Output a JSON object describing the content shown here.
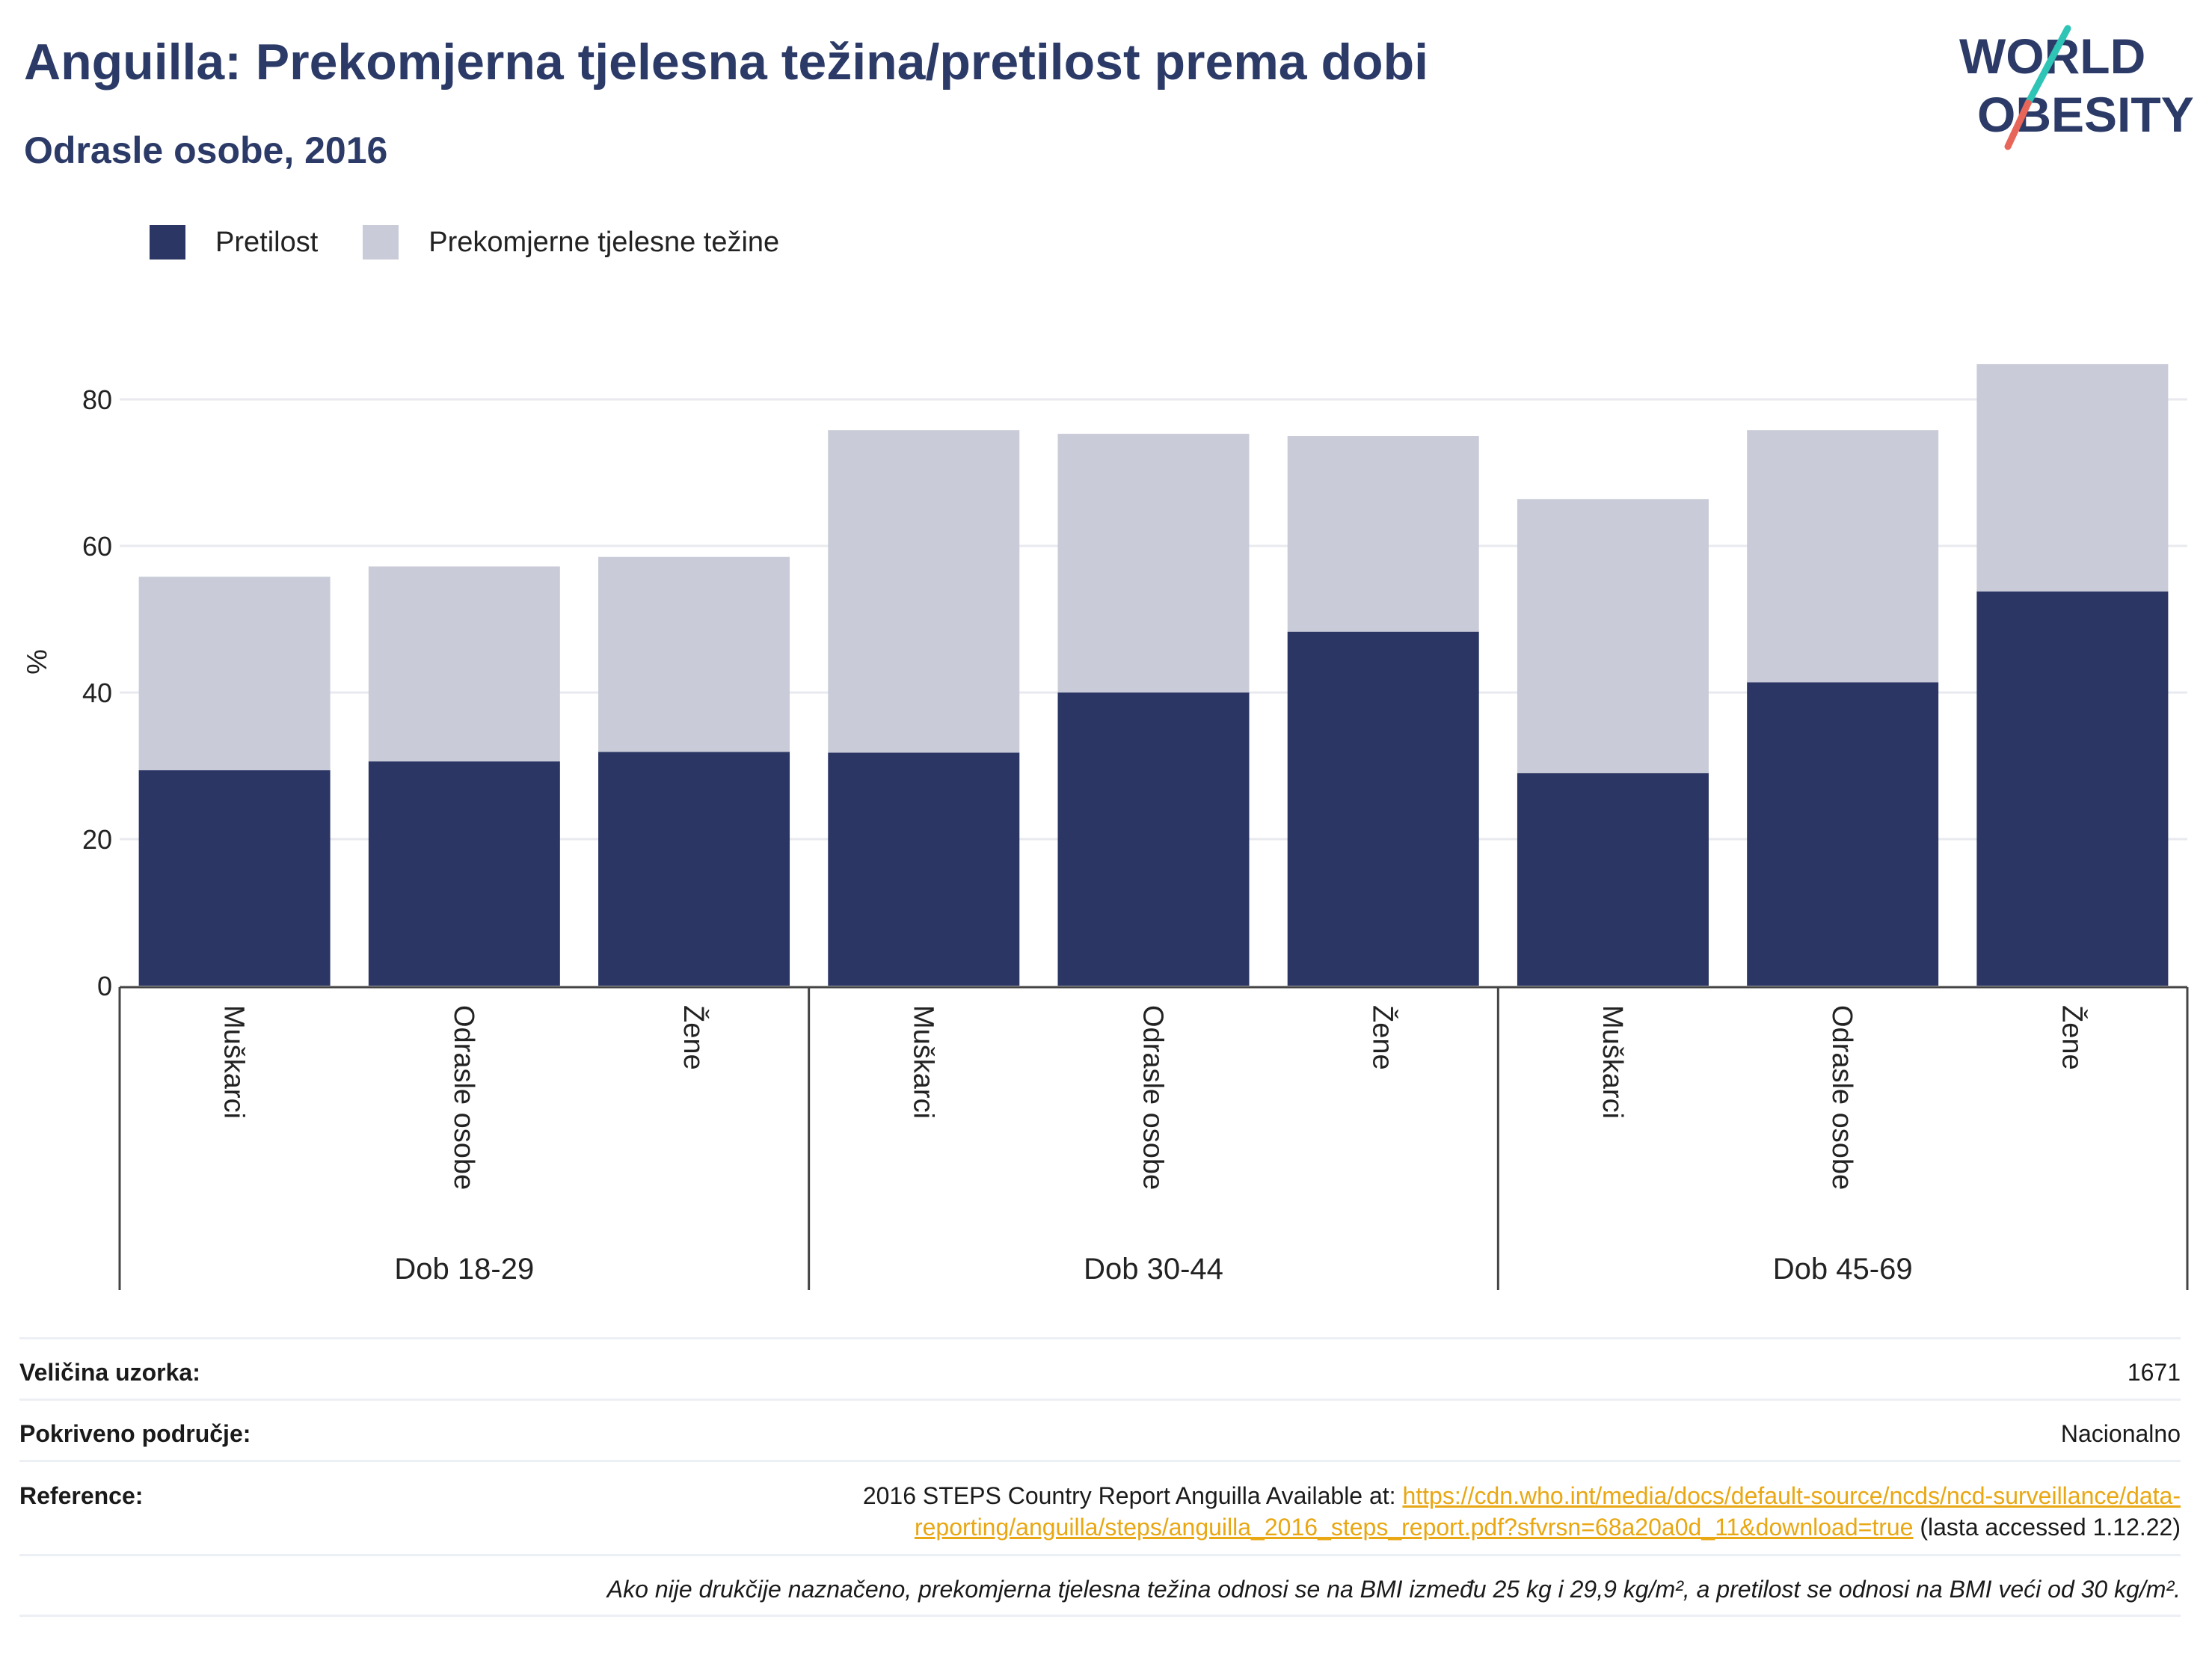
{
  "header": {
    "title": "Anguilla: Prekomjerna tjelesna težina/pretilost prema dobi",
    "subtitle": "Odrasle osobe, 2016"
  },
  "logo": {
    "line1": "WORLD",
    "line2": "OBESITY",
    "icon": "world-obesity-logo"
  },
  "legend": {
    "obesity": "Pretilost",
    "overweight": "Prekomjerne tjelesne težine"
  },
  "colors": {
    "obesity": "#2b3664",
    "overweight": "#c9ccd8",
    "accent_teal": "#2ec4b6",
    "accent_red": "#e8655a",
    "link": "#e8a713"
  },
  "chart_data": {
    "type": "bar",
    "stacked": true,
    "ylabel": "%",
    "ylim": [
      0,
      85
    ],
    "yticks": [
      0,
      20,
      40,
      60,
      80
    ],
    "grid": true,
    "legend_position": "top-left",
    "groups": [
      "Dob 18-29",
      "Dob 30-44",
      "Dob 45-69"
    ],
    "categories": [
      "Muškarci",
      "Odrasle osobe",
      "Žene",
      "Muškarci",
      "Odrasle osobe",
      "Žene",
      "Muškarci",
      "Odrasle osobe",
      "Žene"
    ],
    "series": [
      {
        "name": "Pretilost",
        "values": [
          29.4,
          30.6,
          31.9,
          31.8,
          40.0,
          48.3,
          29.0,
          41.4,
          53.8
        ]
      },
      {
        "name": "Prekomjerne tjelesne težine",
        "values": [
          26.4,
          26.6,
          26.6,
          44.0,
          35.3,
          26.7,
          37.4,
          34.4,
          31.0
        ]
      }
    ]
  },
  "info": {
    "sample_label": "Veličina uzorka:",
    "sample_value": "1671",
    "coverage_label": "Pokriveno područje:",
    "coverage_value": "Nacionalno",
    "reference_label": "Reference:",
    "reference_prefix": "2016 STEPS Country Report Anguilla Available at: ",
    "reference_link": "https://cdn.who.int/media/docs/default-source/ncds/ncd-surveillance/data-reporting/anguilla/steps/anguilla_2016_steps_report.pdf?sfvrsn=68a20a0d_11&download=true",
    "reference_suffix": " (lasta accessed 1.12.22)",
    "note": "Ako nije drukčije naznačeno, prekomjerna tjelesna težina odnosi se na BMI između 25 kg i 29,9 kg/m², a pretilost se odnosi na BMI veći od 30 kg/m²."
  }
}
